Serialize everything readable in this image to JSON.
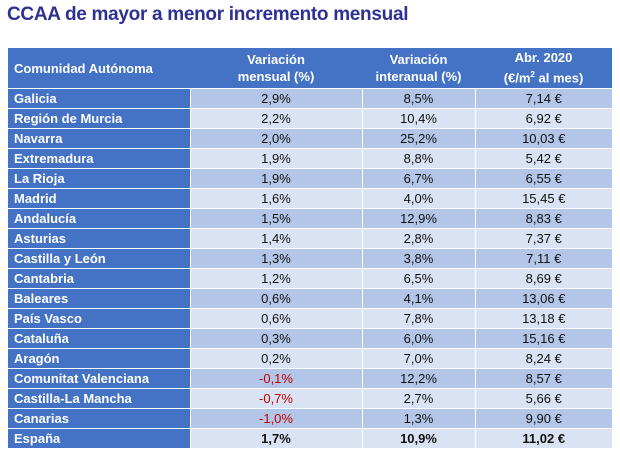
{
  "title": "CCAA de mayor a menor incremento mensual",
  "colors": {
    "header": "#4472c4",
    "row_dark": "#b4c6e7",
    "row_light": "#dae3f3",
    "negative": "#c00000",
    "title": "#2f3192"
  },
  "table": {
    "headers": [
      "Comunidad Autónoma",
      "Variación mensual (%)",
      "Variación interanual (%)",
      "Abr. 2020 (€/m² al mes)"
    ],
    "rows": [
      [
        "Galicia",
        "2,9%",
        "8,5%",
        "7,14 €"
      ],
      [
        "Región de Murcia",
        "2,2%",
        "10,4%",
        "6,92 €"
      ],
      [
        "Navarra",
        "2,0%",
        "25,2%",
        "10,03 €"
      ],
      [
        "Extremadura",
        "1,9%",
        "8,8%",
        "5,42 €"
      ],
      [
        "La Rioja",
        "1,9%",
        "6,7%",
        "6,55 €"
      ],
      [
        "Madrid",
        "1,6%",
        "4,0%",
        "15,45 €"
      ],
      [
        "Andalucía",
        "1,5%",
        "12,9%",
        "8,83 €"
      ],
      [
        "Asturias",
        "1,4%",
        "2,8%",
        "7,37 €"
      ],
      [
        "Castilla y León",
        "1,3%",
        "3,8%",
        "7,11 €"
      ],
      [
        "Cantabria",
        "1,2%",
        "6,5%",
        "8,69 €"
      ],
      [
        "Baleares",
        "0,6%",
        "4,1%",
        "13,06 €"
      ],
      [
        "País Vasco",
        "0,6%",
        "7,8%",
        "13,18 €"
      ],
      [
        "Cataluña",
        "0,3%",
        "6,0%",
        "15,16 €"
      ],
      [
        "Aragón",
        "0,2%",
        "7,0%",
        "8,24 €"
      ],
      [
        "Comunitat Valenciana",
        "-0,1%",
        "12,2%",
        "8,57 €"
      ],
      [
        "Castilla-La Mancha",
        "-0,7%",
        "2,7%",
        "5,66 €"
      ],
      [
        "Canarias",
        "-1,0%",
        "1,3%",
        "9,90 €"
      ]
    ],
    "total": [
      "España",
      "1,7%",
      "10,9%",
      "11,02 €"
    ]
  }
}
